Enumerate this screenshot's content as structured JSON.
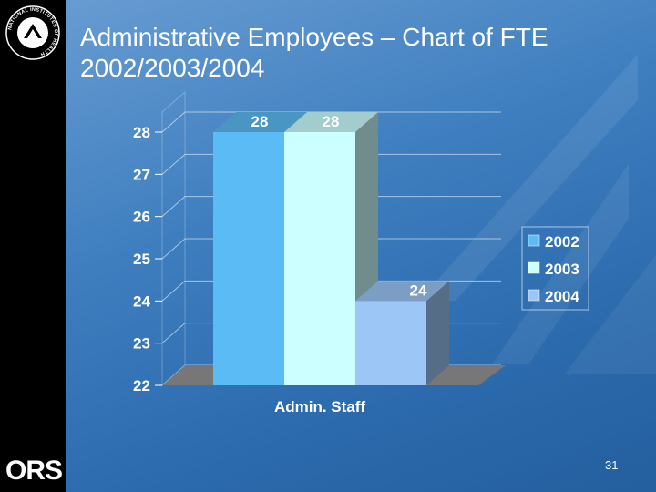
{
  "slide": {
    "title": "Administrative Employees – Chart of FTE 2002/2003/2004",
    "page_number": "31",
    "logo_text": "ORS",
    "nih_seal_text": "NATIONAL INSTITUTES OF HEALTH"
  },
  "chart_data": {
    "type": "bar",
    "categories": [
      "Admin. Staff"
    ],
    "series": [
      {
        "name": "2002",
        "values": [
          28
        ],
        "color": "#5bbcf5"
      },
      {
        "name": "2003",
        "values": [
          28
        ],
        "color": "#ccffff"
      },
      {
        "name": "2004",
        "values": [
          24
        ],
        "color": "#9cc6f5"
      }
    ],
    "y_ticks": [
      22,
      23,
      24,
      25,
      26,
      27,
      28
    ],
    "ylim": [
      22,
      28
    ],
    "grid": true,
    "legend": "right",
    "three_d": true
  }
}
